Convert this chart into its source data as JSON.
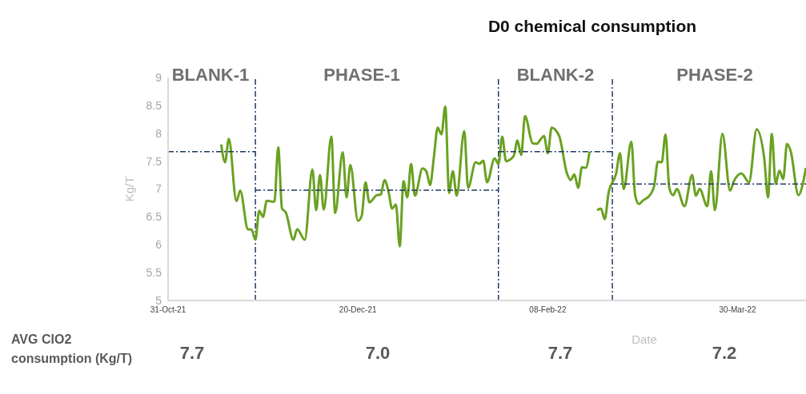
{
  "chart_data": {
    "type": "line",
    "title": "D0 chemical consumption",
    "xlabel": "Date",
    "ylabel": "Kg/T",
    "xlim": [
      "2021-10-31",
      "2022-04-17"
    ],
    "xticks": [
      {
        "value": "2021-10-31",
        "label": "31-Oct-21"
      },
      {
        "value": "2021-12-20",
        "label": "20-Dec-21"
      },
      {
        "value": "2022-02-08",
        "label": "08-Feb-22"
      },
      {
        "value": "2022-03-30",
        "label": "30-Mar-22"
      }
    ],
    "ylim": [
      5,
      9
    ],
    "yticks": [
      5,
      5.5,
      6,
      6.5,
      7,
      7.5,
      8,
      8.5,
      9
    ],
    "line_style": "solid",
    "series": [
      {
        "color": "#6aa121",
        "x": [
          "2021-11-14",
          "2021-11-15",
          "2021-11-16",
          "2021-11-18",
          "2021-11-19",
          "2021-11-21",
          "2021-11-22",
          "2021-11-23",
          "2021-11-24",
          "2021-11-25",
          "2021-11-26",
          "2021-11-28",
          "2021-11-29",
          "2021-11-30",
          "2021-12-01",
          "2021-12-03",
          "2021-12-04",
          "2021-12-06",
          "2021-12-08",
          "2021-12-09",
          "2021-12-10",
          "2021-12-11",
          "2021-12-13",
          "2021-12-14",
          "2021-12-16",
          "2021-12-17",
          "2021-12-18",
          "2021-12-20",
          "2021-12-21",
          "2021-12-22",
          "2021-12-23",
          "2021-12-25",
          "2021-12-26",
          "2021-12-27",
          "2021-12-28",
          "2021-12-29",
          "2021-12-30",
          "2021-12-31",
          "2022-01-01",
          "2022-01-02",
          "2022-01-03",
          "2022-01-04",
          "2022-01-06",
          "2022-01-07",
          "2022-01-08",
          "2022-01-09",
          "2022-01-10",
          "2022-01-11",
          "2022-01-12",
          "2022-01-13",
          "2022-01-14",
          "2022-01-15",
          "2022-01-17",
          "2022-01-18",
          "2022-01-20",
          "2022-01-21",
          "2022-01-22",
          "2022-01-23",
          "2022-01-25",
          "2022-01-26",
          "2022-01-27",
          "2022-01-28",
          "2022-01-30",
          "2022-01-31",
          "2022-02-01",
          "2022-02-02",
          "2022-02-04",
          "2022-02-05",
          "2022-02-07",
          "2022-02-08",
          "2022-02-09",
          "2022-02-11",
          "2022-02-13",
          "2022-02-14",
          "2022-02-15",
          "2022-02-16",
          "2022-02-17",
          "2022-02-18",
          "2022-02-19",
          "2022-02-20",
          "2022-02-21",
          "2022-02-22",
          "2022-02-23",
          "2022-02-24",
          "2022-02-26",
          "2022-02-27",
          "2022-02-28",
          "2022-03-02",
          "2022-03-03",
          "2022-03-04",
          "2022-03-05",
          "2022-03-07",
          "2022-03-08",
          "2022-03-09",
          "2022-03-10",
          "2022-03-11",
          "2022-03-12",
          "2022-03-13",
          "2022-03-14",
          "2022-03-16",
          "2022-03-18",
          "2022-03-19",
          "2022-03-20",
          "2022-03-22",
          "2022-03-23",
          "2022-03-24",
          "2022-03-26",
          "2022-03-28",
          "2022-03-29",
          "2022-03-31",
          "2022-04-02",
          "2022-04-04",
          "2022-04-06",
          "2022-04-07",
          "2022-04-08",
          "2022-04-09",
          "2022-04-10",
          "2022-04-11",
          "2022-04-12",
          "2022-04-13",
          "2022-04-15",
          "2022-04-17"
        ],
        "values": [
          7.8,
          7.48,
          7.9,
          6.78,
          6.97,
          6.28,
          6.27,
          6.09,
          6.61,
          6.5,
          6.79,
          6.77,
          7.75,
          6.65,
          6.58,
          6.09,
          6.28,
          6.09,
          7.35,
          6.62,
          7.25,
          6.63,
          7.94,
          6.57,
          7.66,
          6.85,
          7.43,
          6.43,
          6.52,
          7.12,
          6.76,
          6.89,
          6.9,
          7.16,
          6.97,
          6.65,
          6.72,
          5.97,
          7.14,
          6.85,
          7.45,
          6.88,
          7.37,
          7.32,
          7.07,
          7.57,
          8.1,
          7.98,
          8.48,
          6.93,
          7.32,
          6.88,
          8.04,
          7.02,
          7.48,
          7.45,
          7.51,
          7.12,
          7.55,
          7.45,
          7.94,
          7.5,
          7.59,
          7.87,
          7.61,
          8.31,
          7.82,
          7.81,
          7.95,
          7.64,
          8.1,
          7.95,
          7.29,
          7.16,
          7.26,
          7.02,
          7.39,
          7.38,
          7.67,
          null,
          6.62,
          6.65,
          6.46,
          6.93,
          7.28,
          7.64,
          7.0,
          7.85,
          6.89,
          6.73,
          6.79,
          6.9,
          7.05,
          7.49,
          7.48,
          7.98,
          7.02,
          6.89,
          7.0,
          6.69,
          7.25,
          6.88,
          7.0,
          6.69,
          7.32,
          6.62,
          7.99,
          6.97,
          7.14,
          7.28,
          7.12,
          8.07,
          7.55,
          6.85,
          7.99,
          7.09,
          7.33,
          7.18,
          7.81,
          7.67,
          6.89,
          7.38
        ]
      },
      {
        "color": "#203864",
        "line_style": "dashed",
        "x": [
          "2021-10-31",
          "2021-11-23"
        ],
        "values": [
          7.67,
          7.67
        ]
      },
      {
        "color": "#203864",
        "line_style": "dashed",
        "x": [
          "2021-11-23",
          "2022-01-26"
        ],
        "values": [
          6.98,
          6.98
        ]
      },
      {
        "color": "#203864",
        "line_style": "dashed",
        "x": [
          "2022-01-26",
          "2022-02-25"
        ],
        "values": [
          7.67,
          7.67
        ]
      },
      {
        "color": "#203864",
        "line_style": "dashed",
        "x": [
          "2022-02-25",
          "2022-04-17"
        ],
        "values": [
          7.09,
          7.09
        ]
      }
    ],
    "ref_lines": [
      {
        "axis": "x",
        "value": "2021-11-23",
        "color": "#203864",
        "line_style": "dashed"
      },
      {
        "axis": "x",
        "value": "2022-01-26",
        "color": "#203864",
        "line_style": "dashed"
      },
      {
        "axis": "x",
        "value": "2022-02-25",
        "color": "#203864",
        "line_style": "dashed"
      }
    ],
    "annotations": [
      "BLANK-1",
      "PHASE-1",
      "BLANK-2",
      "PHASE-2",
      "AVG ClO2 consumption (Kg/T)",
      "7.7",
      "7.0",
      "7.7",
      "7.2"
    ]
  }
}
